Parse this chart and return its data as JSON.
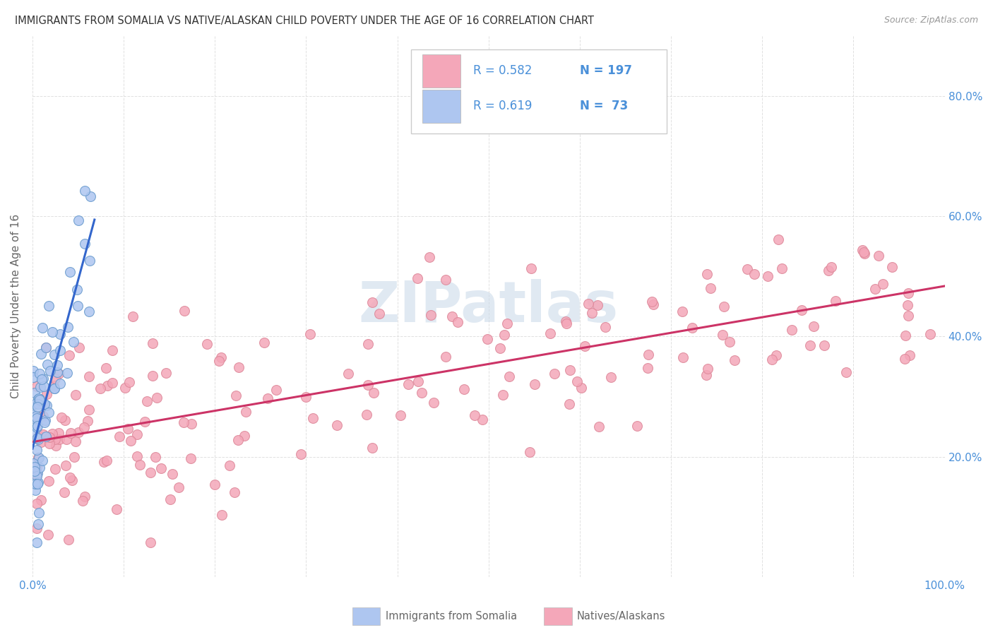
{
  "title": "IMMIGRANTS FROM SOMALIA VS NATIVE/ALASKAN CHILD POVERTY UNDER THE AGE OF 16 CORRELATION CHART",
  "source": "Source: ZipAtlas.com",
  "ylabel": "Child Poverty Under the Age of 16",
  "legend_entries": [
    {
      "label": "Immigrants from Somalia",
      "color": "#aec6f0",
      "R": 0.619,
      "N": 73
    },
    {
      "label": "Natives/Alaskans",
      "color": "#f4a7b9",
      "R": 0.582,
      "N": 197
    }
  ],
  "watermark": "ZIPatlas",
  "watermark_color": "#c8d8e8",
  "xlim": [
    0.0,
    1.0
  ],
  "ylim": [
    0.0,
    0.9
  ],
  "background_color": "#ffffff",
  "blue_scatter_color": "#aec6f0",
  "blue_edge_color": "#6699cc",
  "pink_scatter_color": "#f4a7b9",
  "pink_edge_color": "#dd8899",
  "blue_line_color": "#3366cc",
  "pink_line_color": "#cc3366",
  "tick_color": "#4a90d9",
  "title_color": "#333333",
  "axis_label_color": "#666666",
  "legend_text_color": "#4a90d9",
  "grid_color": "#dddddd",
  "marker_size": 100
}
